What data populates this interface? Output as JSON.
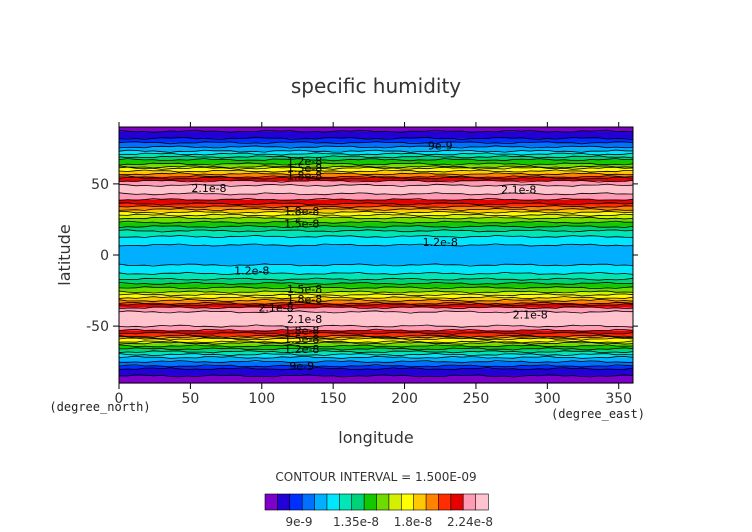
{
  "chart_data": {
    "type": "heatmap",
    "title": "specific humidity",
    "xlabel": "longitude",
    "ylabel": "latitude",
    "x_unit_label": "(degree_east)",
    "y_unit_label": "(degree_north)",
    "xlim": [
      0,
      360
    ],
    "ylim": [
      -90,
      90
    ],
    "x_ticks": [
      0,
      50,
      100,
      150,
      200,
      250,
      300,
      350
    ],
    "y_ticks": [
      -50,
      0,
      50
    ],
    "contour_interval_text": "CONTOUR INTERVAL = 1.500E-09",
    "colorbar": {
      "tick_labels": [
        "9e-9",
        "1.35e-8",
        "1.8e-8",
        "2.24e-8"
      ],
      "colors": [
        "#7f00c8",
        "#2200d6",
        "#0030ff",
        "#0070ff",
        "#00b0ff",
        "#00e6ff",
        "#00e6b4",
        "#00d27a",
        "#14c800",
        "#6edc00",
        "#d2f000",
        "#ffff00",
        "#ffc800",
        "#ff8200",
        "#ff2d00",
        "#e60000",
        "#ff9bb4",
        "#ffc3cd"
      ]
    },
    "profile": {
      "lat": [
        -90,
        -82,
        -78,
        -74,
        -70,
        -66,
        -62,
        -58,
        -55,
        -52,
        -49,
        -46,
        -43,
        -40,
        -37,
        -34,
        -31,
        -28,
        -25,
        -22,
        -19,
        -16,
        -13,
        -10,
        -6,
        -2,
        2,
        6,
        10,
        13,
        16,
        19,
        22,
        25,
        28,
        31,
        34,
        37,
        40,
        43,
        46,
        49,
        52,
        55,
        58,
        62,
        66,
        70,
        74,
        78,
        82,
        86,
        90
      ],
      "q": [
        8e-09,
        8.6e-09,
        1e-08,
        1.12e-08,
        1.25e-08,
        1.42e-08,
        1.6e-08,
        1.85e-08,
        2.05e-08,
        2.15e-08,
        2.22e-08,
        2.26e-08,
        2.25e-08,
        2.2e-08,
        2.1e-08,
        1.95e-08,
        1.82e-08,
        1.7e-08,
        1.58e-08,
        1.48e-08,
        1.4e-08,
        1.33e-08,
        1.26e-08,
        1.2e-08,
        1.17e-08,
        1.16e-08,
        1.16e-08,
        1.17e-08,
        1.2e-08,
        1.26e-08,
        1.33e-08,
        1.4e-08,
        1.48e-08,
        1.58e-08,
        1.68e-08,
        1.8e-08,
        1.92e-08,
        2.05e-08,
        2.14e-08,
        2.2e-08,
        2.25e-08,
        2.2e-08,
        2.1e-08,
        1.95e-08,
        1.8e-08,
        1.62e-08,
        1.45e-08,
        1.3e-08,
        1.15e-08,
        1.02e-08,
        9.2e-09,
        8.6e-09,
        7.5e-09
      ],
      "q_min": 7.5e-09,
      "q_max": 2.28e-08
    },
    "contour_labels": [
      {
        "text": "9e-9",
        "lon": 225,
        "lat": 77
      },
      {
        "text": "1.2e-8",
        "lon": 130,
        "lat": 66
      },
      {
        "text": "1.5e-8",
        "lon": 130,
        "lat": 61
      },
      {
        "text": "1.8e-8",
        "lon": 130,
        "lat": 56
      },
      {
        "text": "2.1e-8",
        "lon": 63,
        "lat": 47
      },
      {
        "text": "2.1e-8",
        "lon": 280,
        "lat": 46
      },
      {
        "text": "1.8e-8",
        "lon": 128,
        "lat": 31
      },
      {
        "text": "1.5e-8",
        "lon": 128,
        "lat": 22
      },
      {
        "text": "1.2e-8",
        "lon": 225,
        "lat": 9
      },
      {
        "text": "1.2e-8",
        "lon": 93,
        "lat": -11
      },
      {
        "text": "1.5e-8",
        "lon": 130,
        "lat": -24
      },
      {
        "text": "1.8e-8",
        "lon": 130,
        "lat": -31
      },
      {
        "text": "2.1e-8",
        "lon": 110,
        "lat": -37
      },
      {
        "text": "2.1e-8",
        "lon": 130,
        "lat": -45
      },
      {
        "text": "2.1e-8",
        "lon": 288,
        "lat": -42
      },
      {
        "text": "1.8e-8",
        "lon": 128,
        "lat": -53
      },
      {
        "text": "1.5e-8",
        "lon": 128,
        "lat": -59
      },
      {
        "text": "1.2e-8",
        "lon": 128,
        "lat": -66
      },
      {
        "text": "9e-9",
        "lon": 128,
        "lat": -78
      }
    ]
  }
}
